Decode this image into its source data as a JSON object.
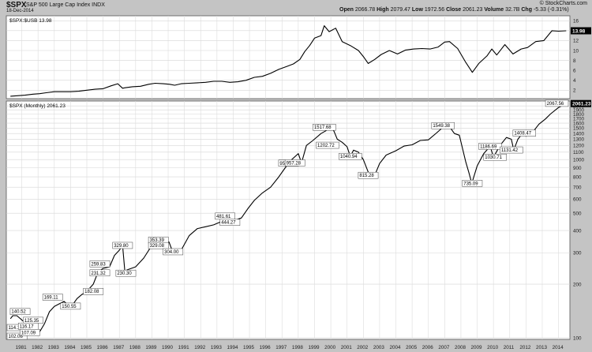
{
  "header": {
    "symbol": "$SPX",
    "name": "S&P 500 Large Cap Index",
    "exchange": "INDX",
    "date": "18-Dec-2014",
    "open_label": "Open",
    "open": "2066.78",
    "high_label": "High",
    "high": "2079.47",
    "low_label": "Low",
    "low": "1972.56",
    "close_label": "Close",
    "close": "2061.23",
    "volume_label": "Volume",
    "volume": "32.7B",
    "chg_label": "Chg",
    "chg": "-5.33 (-0.31%)",
    "brand": "© StockCharts.com"
  },
  "chart_data": [
    {
      "type": "line",
      "title": "$SPX:$USB 13.98",
      "last_value_label": "13.98",
      "yticks": [
        2,
        4,
        6,
        8,
        10,
        12,
        14,
        16
      ],
      "ylim": [
        0.3,
        17
      ],
      "x": [
        1980.8,
        1981.3,
        1981.7,
        1982.2,
        1982.6,
        1983,
        1983.5,
        1984,
        1984.5,
        1985,
        1985.5,
        1986,
        1986.5,
        1987,
        1987.4,
        1987.7,
        1987.85,
        1988.3,
        1988.8,
        1989.3,
        1989.7,
        1990.2,
        1990.6,
        1990.9,
        1991.3,
        1991.8,
        1992.3,
        1992.8,
        1993.3,
        1993.8,
        1994.3,
        1994.8,
        1995.3,
        1995.8,
        1996.3,
        1996.8,
        1997.3,
        1997.8,
        1998.2,
        1998.6,
        1998.9,
        1999.2,
        1999.5,
        1999.9,
        2000.1,
        2000.4,
        2000.8,
        2001.2,
        2001.7,
        2002.2,
        2002.5,
        2002.8,
        2003.2,
        2003.6,
        2004.1,
        2004.6,
        2005.1,
        2005.6,
        2006.1,
        2006.6,
        2007.1,
        2007.5,
        2007.8,
        2008.3,
        2008.8,
        2009.2,
        2009.6,
        2010.1,
        2010.4,
        2010.7,
        2011.2,
        2011.7,
        2012.2,
        2012.6,
        2013.1,
        2013.6,
        2014.1,
        2014.5,
        2014.97
      ],
      "y": [
        0.8,
        0.9,
        1.0,
        1.2,
        1.3,
        1.5,
        1.7,
        1.7,
        1.7,
        1.8,
        2.0,
        2.2,
        2.3,
        2.9,
        3.3,
        2.4,
        2.5,
        2.7,
        2.8,
        3.2,
        3.4,
        3.3,
        3.2,
        3.0,
        3.3,
        3.4,
        3.5,
        3.6,
        3.8,
        3.8,
        3.6,
        3.7,
        4.0,
        4.6,
        4.8,
        5.4,
        6.2,
        6.8,
        7.3,
        8.2,
        9.8,
        11.0,
        12.5,
        13.0,
        15.0,
        13.8,
        14.5,
        11.8,
        11.0,
        10.0,
        8.8,
        7.4,
        8.2,
        9.2,
        10.0,
        9.3,
        10.1,
        10.3,
        10.4,
        10.3,
        10.7,
        11.7,
        11.8,
        10.4,
        7.6,
        5.6,
        7.4,
        8.9,
        10.3,
        9.1,
        11.2,
        9.3,
        10.3,
        10.6,
        11.8,
        12.0,
        14.0,
        13.9,
        13.98
      ]
    },
    {
      "type": "line",
      "title": "$SPX (Monthly) 2061.23",
      "last_value_label": "2061.23",
      "y_scale": "log",
      "yticks": [
        100,
        200,
        300,
        400,
        500,
        600,
        700,
        800,
        900,
        1000,
        1100,
        1200,
        1300,
        1400,
        1500,
        1600,
        1700,
        1800,
        1900,
        2000
      ],
      "ylim": [
        98,
        2130
      ],
      "xticks": [
        1981,
        1982,
        1983,
        1984,
        1985,
        1986,
        1987,
        1988,
        1989,
        1990,
        1991,
        1992,
        1993,
        1994,
        1995,
        1996,
        1997,
        1998,
        1999,
        2000,
        2001,
        2002,
        2003,
        2004,
        2005,
        2006,
        2007,
        2008,
        2009,
        2010,
        2011,
        2012,
        2013,
        2014
      ],
      "xlim": [
        1980.55,
        2015.2
      ],
      "x": [
        1980.8,
        1980.95,
        1981.2,
        1981.5,
        1981.75,
        1982.0,
        1982.3,
        1982.6,
        1982.9,
        1983.2,
        1983.5,
        1983.8,
        1984.1,
        1984.4,
        1984.6,
        1984.9,
        1985.2,
        1985.5,
        1985.9,
        1986.2,
        1986.5,
        1986.9,
        1987.2,
        1987.5,
        1987.7,
        1987.85,
        1987.95,
        1988.5,
        1989.0,
        1989.5,
        1990.0,
        1990.3,
        1990.55,
        1990.8,
        1991.3,
        1991.8,
        1992.3,
        1992.8,
        1993.3,
        1993.8,
        1994.1,
        1994.3,
        1994.7,
        1995.0,
        1995.4,
        1995.8,
        1996.3,
        1996.8,
        1997.3,
        1997.7,
        1998.1,
        1998.5,
        1998.7,
        1999.0,
        1999.4,
        1999.9,
        2000.2,
        2000.5,
        2000.7,
        2000.9,
        2001.2,
        2001.5,
        2001.7,
        2001.9,
        2002.2,
        2002.5,
        2002.8,
        2003.2,
        2003.5,
        2003.9,
        2004.5,
        2005.0,
        2005.5,
        2006.0,
        2006.5,
        2007.0,
        2007.4,
        2007.75,
        2008.1,
        2008.4,
        2008.8,
        2009.0,
        2009.17,
        2009.5,
        2009.9,
        2010.3,
        2010.5,
        2010.9,
        2011.3,
        2011.6,
        2011.75,
        2012.0,
        2012.3,
        2012.5,
        2012.9,
        2013.3,
        2013.7,
        2014.0,
        2014.5,
        2014.97
      ],
      "y": [
        128,
        133,
        133,
        126,
        120,
        114,
        110,
        108,
        120,
        140,
        150,
        155,
        160,
        151,
        152,
        166,
        175,
        182,
        200,
        235,
        245,
        250,
        290,
        310,
        329.8,
        230,
        240,
        250,
        280,
        330,
        353.4,
        340,
        345,
        300,
        310,
        375,
        410,
        420,
        430,
        450,
        481.6,
        444.3,
        460,
        470,
        530,
        590,
        650,
        700,
        800,
        900,
        1000,
        1080,
        957,
        1200,
        1280,
        1400,
        1450,
        1520,
        1440,
        1300,
        1250,
        1180,
        1040.9,
        1130,
        1100,
        1000,
        850,
        815,
        950,
        1060,
        1120,
        1190,
        1210,
        1280,
        1290,
        1410,
        1520,
        1549.4,
        1400,
        1370,
        970,
        840,
        735.1,
        920,
        1080,
        1186.7,
        1030.7,
        1200,
        1330,
        1300,
        1131.4,
        1300,
        1408.5,
        1350,
        1420,
        1580,
        1690,
        1800,
        1960,
        2061.23
      ],
      "annotations": [
        {
          "x": 1980.6,
          "y": 114.16,
          "label": "114.16"
        },
        {
          "x": 1980.9,
          "y": 102.08,
          "label": "102.08"
        },
        {
          "x": 1981.4,
          "y": 140.52,
          "label": "140.52"
        },
        {
          "x": 1982.2,
          "y": 125.35,
          "label": "125.35"
        },
        {
          "x": 1981.9,
          "y": 116.17,
          "label": "116.17"
        },
        {
          "x": 1982.0,
          "y": 107.09,
          "label": "107.09"
        },
        {
          "x": 1983.4,
          "y": 169.11,
          "label": "169.11"
        },
        {
          "x": 1984.5,
          "y": 150.55,
          "label": "150.55"
        },
        {
          "x": 1985.9,
          "y": 182.08,
          "label": "182.08"
        },
        {
          "x": 1986.3,
          "y": 259.83,
          "label": "259.83"
        },
        {
          "x": 1986.3,
          "y": 231.32,
          "label": "231.32"
        },
        {
          "x": 1987.7,
          "y": 329.8,
          "label": "329.80"
        },
        {
          "x": 1987.9,
          "y": 230.3,
          "label": "230.30"
        },
        {
          "x": 1989.9,
          "y": 353.39,
          "label": "353.39"
        },
        {
          "x": 1989.9,
          "y": 329.08,
          "label": "329.08"
        },
        {
          "x": 1990.8,
          "y": 304,
          "label": "304.00"
        },
        {
          "x": 1994.0,
          "y": 481.61,
          "label": "481.61"
        },
        {
          "x": 1994.3,
          "y": 444.27,
          "label": "444.27"
        },
        {
          "x": 1997.9,
          "y": 954.29,
          "label": "954.29"
        },
        {
          "x": 1998.3,
          "y": 957.28,
          "label": "957.28"
        },
        {
          "x": 2000.1,
          "y": 1517.68,
          "label": "1517.68"
        },
        {
          "x": 2000.3,
          "y": 1202.72,
          "label": "1202.72"
        },
        {
          "x": 2001.7,
          "y": 1040.94,
          "label": "1040.94"
        },
        {
          "x": 2002.8,
          "y": 815.28,
          "label": "815.28"
        },
        {
          "x": 2007.4,
          "y": 1549.38,
          "label": "1549.38"
        },
        {
          "x": 2009.2,
          "y": 735.09,
          "label": "735.09"
        },
        {
          "x": 2010.3,
          "y": 1186.69,
          "label": "1186.69"
        },
        {
          "x": 2010.6,
          "y": 1030.71,
          "label": "1030.71"
        },
        {
          "x": 2011.6,
          "y": 1131.42,
          "label": "1131.42"
        },
        {
          "x": 2012.4,
          "y": 1408.47,
          "label": "1408.47"
        },
        {
          "x": 2014.4,
          "y": 2067.56,
          "label": "2067.56"
        }
      ]
    }
  ]
}
